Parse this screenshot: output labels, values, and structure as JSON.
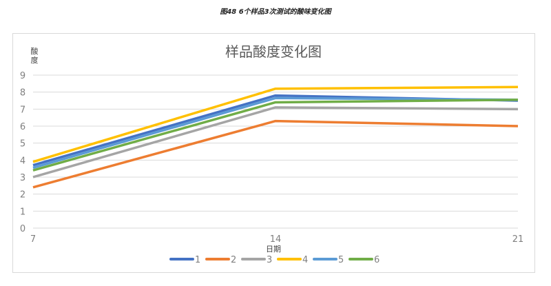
{
  "caption": "图48 6个样品3次测试的酸味变化图",
  "chart_data": {
    "type": "line",
    "title": "样品酸度变化图",
    "xlabel": "日期",
    "ylabel": "酸度",
    "x": [
      7,
      14,
      21
    ],
    "x_tick_labels": [
      "7",
      "14",
      "21"
    ],
    "ylim": [
      0,
      9
    ],
    "y_ticks": [
      0,
      1,
      2,
      3,
      4,
      5,
      6,
      7,
      8,
      9
    ],
    "grid": true,
    "legend_position": "bottom",
    "series": [
      {
        "name": "1",
        "color": "#4472C4",
        "values": [
          3.7,
          7.8,
          7.5
        ]
      },
      {
        "name": "2",
        "color": "#ED7D31",
        "values": [
          2.4,
          6.3,
          6.0
        ]
      },
      {
        "name": "3",
        "color": "#A5A5A5",
        "values": [
          3.0,
          7.1,
          7.0
        ]
      },
      {
        "name": "4",
        "color": "#FFC000",
        "values": [
          3.9,
          8.2,
          8.3
        ]
      },
      {
        "name": "5",
        "color": "#5B9BD5",
        "values": [
          3.55,
          7.65,
          7.55
        ]
      },
      {
        "name": "6",
        "color": "#70AD47",
        "values": [
          3.4,
          7.4,
          7.55
        ]
      }
    ]
  }
}
